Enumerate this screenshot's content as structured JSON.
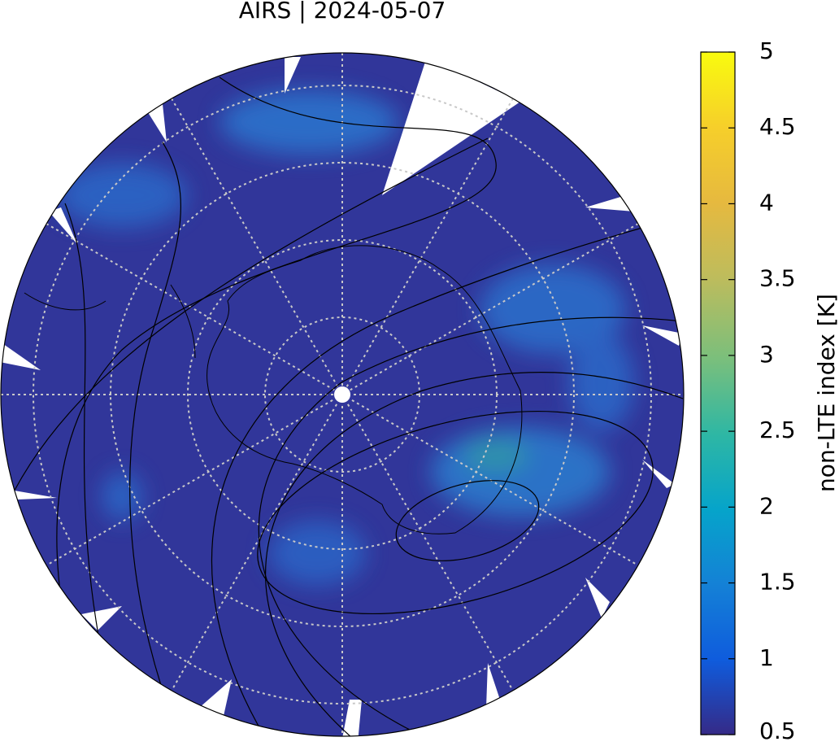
{
  "title": "AIRS | 2024-05-07",
  "colorbar": {
    "label": "non-LTE index [K]",
    "range": [
      0.5,
      5
    ],
    "ticks": [
      0.5,
      1,
      1.5,
      2,
      2.5,
      3,
      3.5,
      4,
      4.5,
      5
    ]
  }
}
